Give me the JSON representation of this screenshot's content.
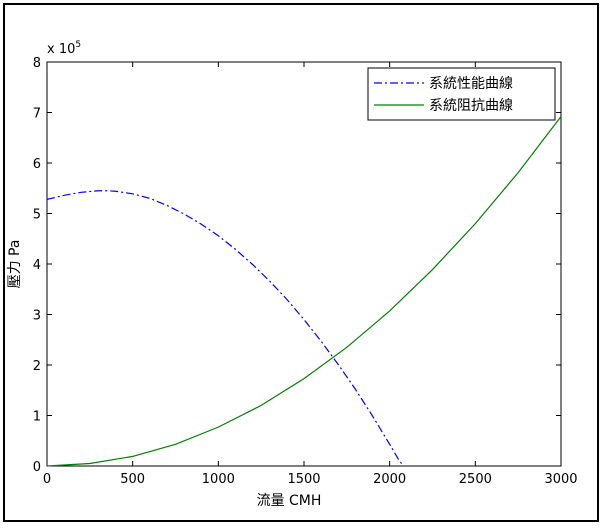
{
  "chart_data": {
    "type": "line",
    "xlabel": "流量 CMH",
    "ylabel": "壓力 Pa",
    "exponent_label": {
      "base": "x 10",
      "power": "5"
    },
    "xlim": [
      0,
      3000
    ],
    "ylim": [
      0,
      8
    ],
    "xticks": [
      0,
      500,
      1000,
      1500,
      2000,
      2500,
      3000
    ],
    "yticks": [
      0,
      1,
      2,
      3,
      4,
      5,
      6,
      7,
      8
    ],
    "grid": false,
    "legend_position": "top-right",
    "series": [
      {
        "name": "系統性能曲線",
        "style": "dashdot",
        "color": "#0000ff",
        "x": [
          0,
          100,
          200,
          300,
          350,
          400,
          500,
          600,
          700,
          800,
          900,
          1000,
          1100,
          1200,
          1300,
          1400,
          1500,
          1600,
          1700,
          1800,
          1900,
          2000,
          2050,
          2080
        ],
        "y": [
          5.28,
          5.36,
          5.42,
          5.45,
          5.45,
          5.44,
          5.39,
          5.3,
          5.16,
          4.99,
          4.79,
          4.56,
          4.29,
          3.99,
          3.66,
          3.3,
          2.9,
          2.47,
          2.01,
          1.52,
          0.99,
          0.43,
          0.14,
          0.0
        ]
      },
      {
        "name": "系統阻抗曲線",
        "style": "solid",
        "color": "#008000",
        "x": [
          0,
          250,
          500,
          750,
          1000,
          1250,
          1500,
          1750,
          2000,
          2250,
          2500,
          2750,
          3000
        ],
        "y": [
          0.0,
          0.05,
          0.19,
          0.43,
          0.77,
          1.2,
          1.73,
          2.35,
          3.07,
          3.89,
          4.8,
          5.81,
          6.92
        ]
      }
    ]
  }
}
